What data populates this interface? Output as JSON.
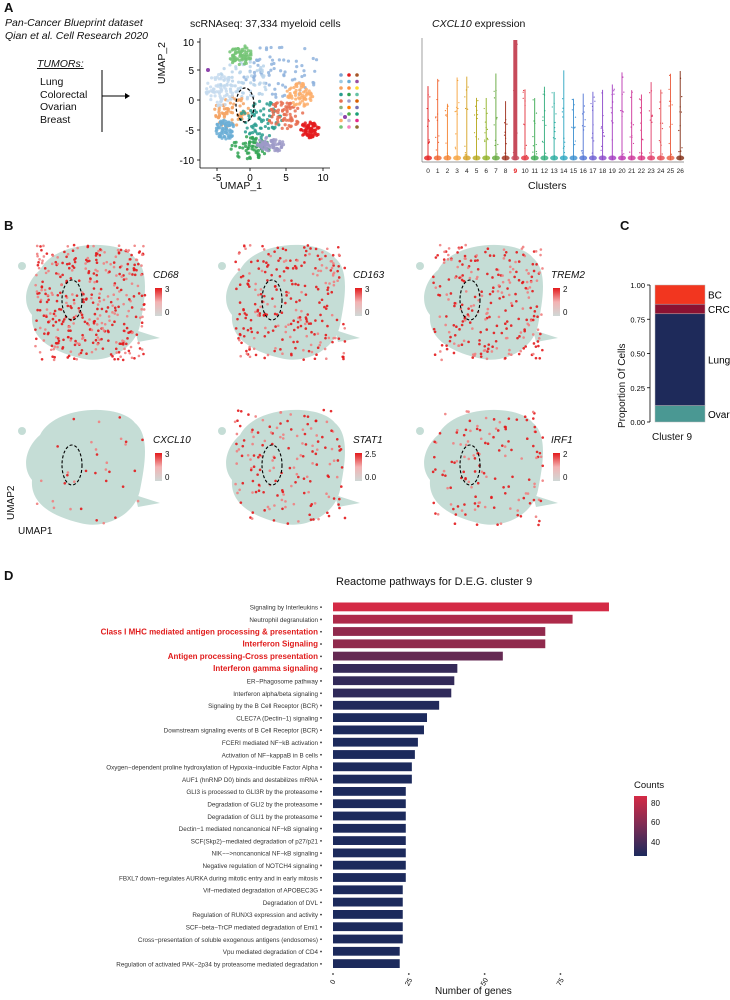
{
  "panelA": {
    "letter": "A",
    "dataset_line1": "Pan-Cancer Blueprint dataset",
    "dataset_line2": "Qian et al. Cell Research 2020",
    "tumors_label": "TUMORs:",
    "tumors": [
      "Lung",
      "Colorectal",
      "Ovarian",
      "Breast"
    ],
    "umap_title": "scRNAseq: 37,334 myeloid cells",
    "umap_xlabel": "UMAP_1",
    "umap_ylabel": "UMAP_2",
    "umap_xticks": [
      "-5",
      "0",
      "5",
      "10"
    ],
    "umap_yticks": [
      "10",
      "5",
      "0",
      "-5",
      "-10"
    ],
    "violin_title_gene": "CXCL10",
    "violin_title_rest": " expression",
    "violin_xlabel": "Clusters",
    "violin_clusters": [
      "0",
      "1",
      "2",
      "3",
      "4",
      "5",
      "6",
      "7",
      "8",
      "9",
      "10",
      "11",
      "12",
      "13",
      "14",
      "15",
      "16",
      "17",
      "18",
      "19",
      "20",
      "21",
      "22",
      "23",
      "24",
      "25",
      "26"
    ],
    "highlight_cluster": "9"
  },
  "panelB": {
    "letter": "B",
    "axis_y": "UMAP2",
    "axis_x": "UMAP1",
    "genes": [
      {
        "name": "CD68",
        "max": "3",
        "min": "0"
      },
      {
        "name": "CD163",
        "max": "3",
        "min": "0"
      },
      {
        "name": "TREM2",
        "max": "2",
        "min": "0"
      },
      {
        "name": "CXCL10",
        "max": "3",
        "min": "0"
      },
      {
        "name": "STAT1",
        "max": "2.5",
        "min": "0.0"
      },
      {
        "name": "IRF1",
        "max": "2",
        "min": "0"
      }
    ]
  },
  "panelC": {
    "letter": "C",
    "ylabel": "Proportion Of Cells",
    "xlabel": "Cluster 9",
    "yticks": [
      "1.00",
      "0.75",
      "0.50",
      "0.25",
      "0.00"
    ],
    "colors": {
      "BC": "#f2361f",
      "CRC": "#8b1232",
      "Lung": "#1e2a5a",
      "Ovarian": "#4a9893"
    }
  },
  "panelD": {
    "letter": "D",
    "legend_title": "Counts",
    "legend_ticks": [
      "80",
      "60",
      "40"
    ]
  },
  "chart_data": [
    {
      "type": "bar",
      "title": "Reactome pathways for D.E.G. cluster 9",
      "xlabel": "Number of genes",
      "ylabel": "",
      "orientation": "horizontal",
      "xlim": [
        0,
        92
      ],
      "xticks": [
        "0",
        "25",
        "50",
        "75"
      ],
      "highlighted": [
        "Class I MHC mediated antigen processing & presentation",
        "Interferon Signaling",
        "Antigen  processing-Cross presentation",
        "Interferon gamma signaling"
      ],
      "categories": [
        "Signaling by Interleukins",
        "Neutrophil degranulation",
        "Class I MHC mediated antigen processing & presentation",
        "Interferon Signaling",
        "Antigen  processing-Cross presentation",
        "Interferon gamma signaling",
        "ER−Phagosome pathway",
        "Interferon alpha/beta signaling",
        "Signaling by the B Cell Receptor (BCR)",
        "CLEC7A (Dectin−1) signaling",
        "Downstream signaling events of B Cell Receptor (BCR)",
        "FCERI mediated NF−kB activation",
        "Activation of NF−kappaB in B cells",
        "Oxygen−dependent proline hydroxylation of Hypoxia−inducible Factor Alpha",
        "AUF1 (hnRNP D0) binds and destabilizes mRNA",
        "GLI3 is processed to GLI3R by the proteasome",
        "Degradation of GLI2 by the proteasome",
        "Degradation of GLI1 by the proteasome",
        "Dectin−1 mediated noncanonical NF−kB signaling",
        "SCF(Skp2)−mediated degradation of p27/p21",
        "NIK−−>noncanonical NF−kB signaling",
        "Negative regulation of NOTCH4 signaling",
        "FBXL7 down−regulates AURKA during mitotic entry and in early mitosis",
        "Vif−mediated degradation of APOBEC3G",
        "Degradation of DVL",
        "Regulation of RUNX3 expression and activity",
        "SCF−beta−TrCP mediated degradation of Emi1",
        "Cross−presentation of soluble exogenous antigens (endosomes)",
        "Vpu mediated degradation of CD4",
        "Regulation of activated PAK−2p34 by proteasome mediated degradation"
      ],
      "values": [
        91,
        79,
        70,
        70,
        56,
        41,
        40,
        39,
        35,
        31,
        30,
        28,
        27,
        26,
        26,
        24,
        24,
        24,
        24,
        24,
        24,
        24,
        24,
        23,
        23,
        23,
        23,
        23,
        22,
        22
      ],
      "color_scale": {
        "low": 33,
        "high": 91,
        "low_color": "#1c2a5c",
        "high_color": "#d42a45"
      }
    },
    {
      "type": "bar",
      "title": "",
      "stacked": true,
      "categories": [
        "Cluster 9"
      ],
      "series": [
        {
          "name": "Ovarian",
          "values": [
            0.12
          ]
        },
        {
          "name": "Lung",
          "values": [
            0.67
          ]
        },
        {
          "name": "CRC",
          "values": [
            0.07
          ]
        },
        {
          "name": "BC",
          "values": [
            0.14
          ]
        }
      ],
      "xlabel": "Cluster 9",
      "ylabel": "Proportion Of Cells",
      "ylim": [
        0,
        1
      ]
    }
  ]
}
